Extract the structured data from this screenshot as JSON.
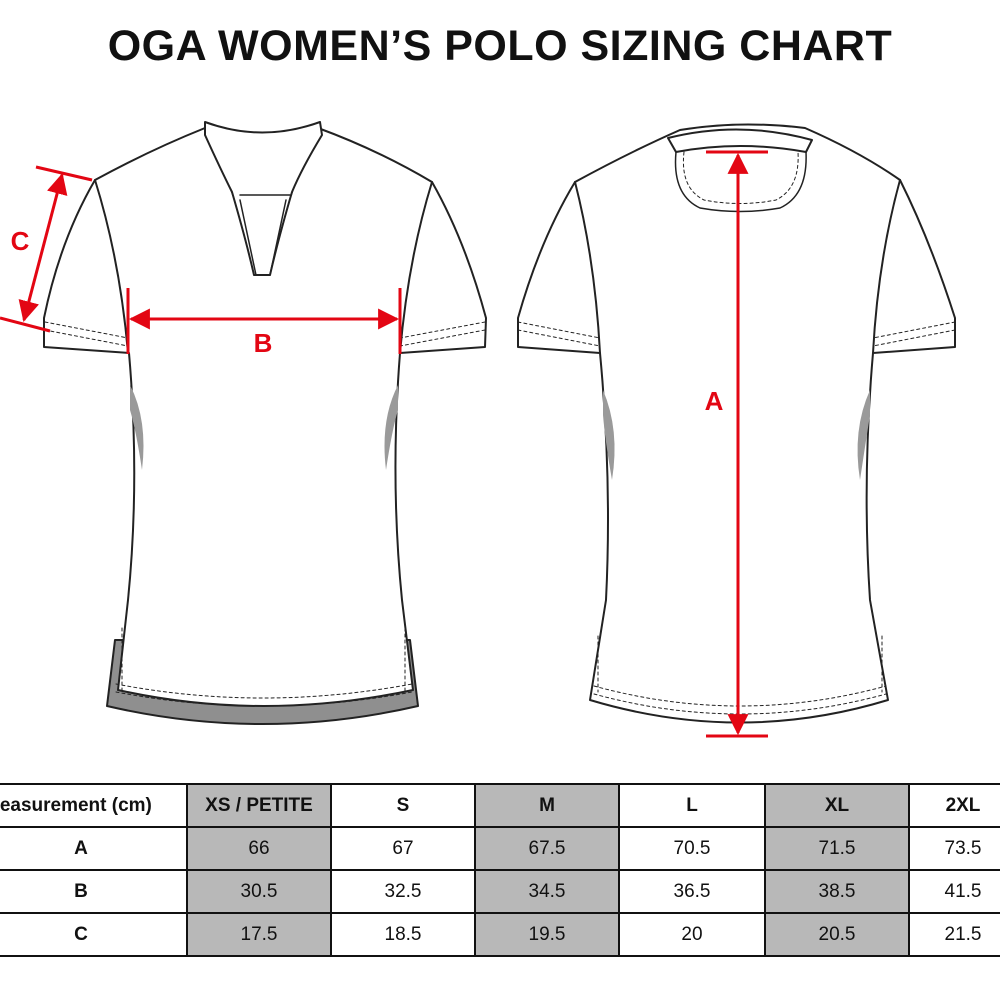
{
  "title": "OGA WOMEN’S POLO SIZING CHART",
  "measurement_labels": {
    "a": "A",
    "b": "B",
    "c": "C"
  },
  "colors": {
    "accent": "#e30613",
    "shade": "#b8b8b8",
    "text": "#111111"
  },
  "table": {
    "header": [
      "Measurement (cm)",
      "XS / PETITE",
      "S",
      "M",
      "L",
      "XL",
      "2XL"
    ],
    "rows": [
      {
        "label": "A",
        "values": [
          "66",
          "67",
          "67.5",
          "70.5",
          "71.5",
          "73.5"
        ]
      },
      {
        "label": "B",
        "values": [
          "30.5",
          "32.5",
          "34.5",
          "36.5",
          "38.5",
          "41.5"
        ]
      },
      {
        "label": "C",
        "values": [
          "17.5",
          "18.5",
          "19.5",
          "20",
          "20.5",
          "21.5"
        ]
      }
    ]
  }
}
